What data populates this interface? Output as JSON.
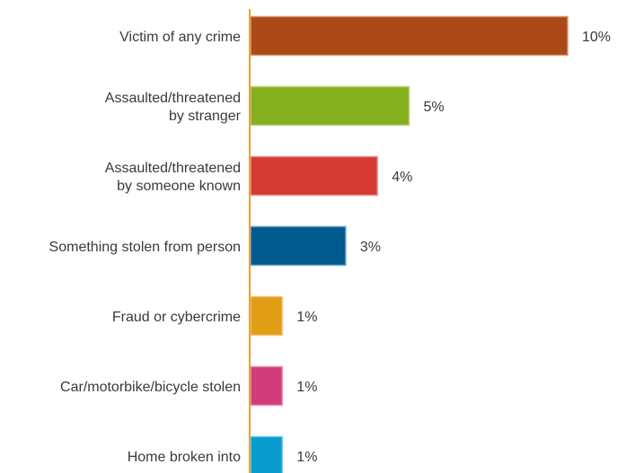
{
  "chart_data": {
    "type": "bar",
    "orientation": "horizontal",
    "categories": [
      [
        "Victim of any crime"
      ],
      [
        "Assaulted/threatened",
        "by stranger"
      ],
      [
        "Assaulted/threatened",
        "by someone known"
      ],
      [
        "Something stolen from person"
      ],
      [
        "Fraud or cybercrime"
      ],
      [
        "Car/motorbike/bicycle stolen"
      ],
      [
        "Home broken into"
      ]
    ],
    "values": [
      10,
      5,
      4,
      3,
      1,
      1,
      1
    ],
    "value_labels": [
      "10%",
      "5%",
      "4%",
      "3%",
      "1%",
      "1%",
      "1%"
    ],
    "colors": [
      "#ad4817",
      "#84b01e",
      "#d43a33",
      "#015a8d",
      "#e29d16",
      "#d23d79",
      "#079ccd"
    ],
    "axis_color": "#e8a23a",
    "xlim": [
      0,
      10
    ],
    "grid": false,
    "legend": "none"
  }
}
